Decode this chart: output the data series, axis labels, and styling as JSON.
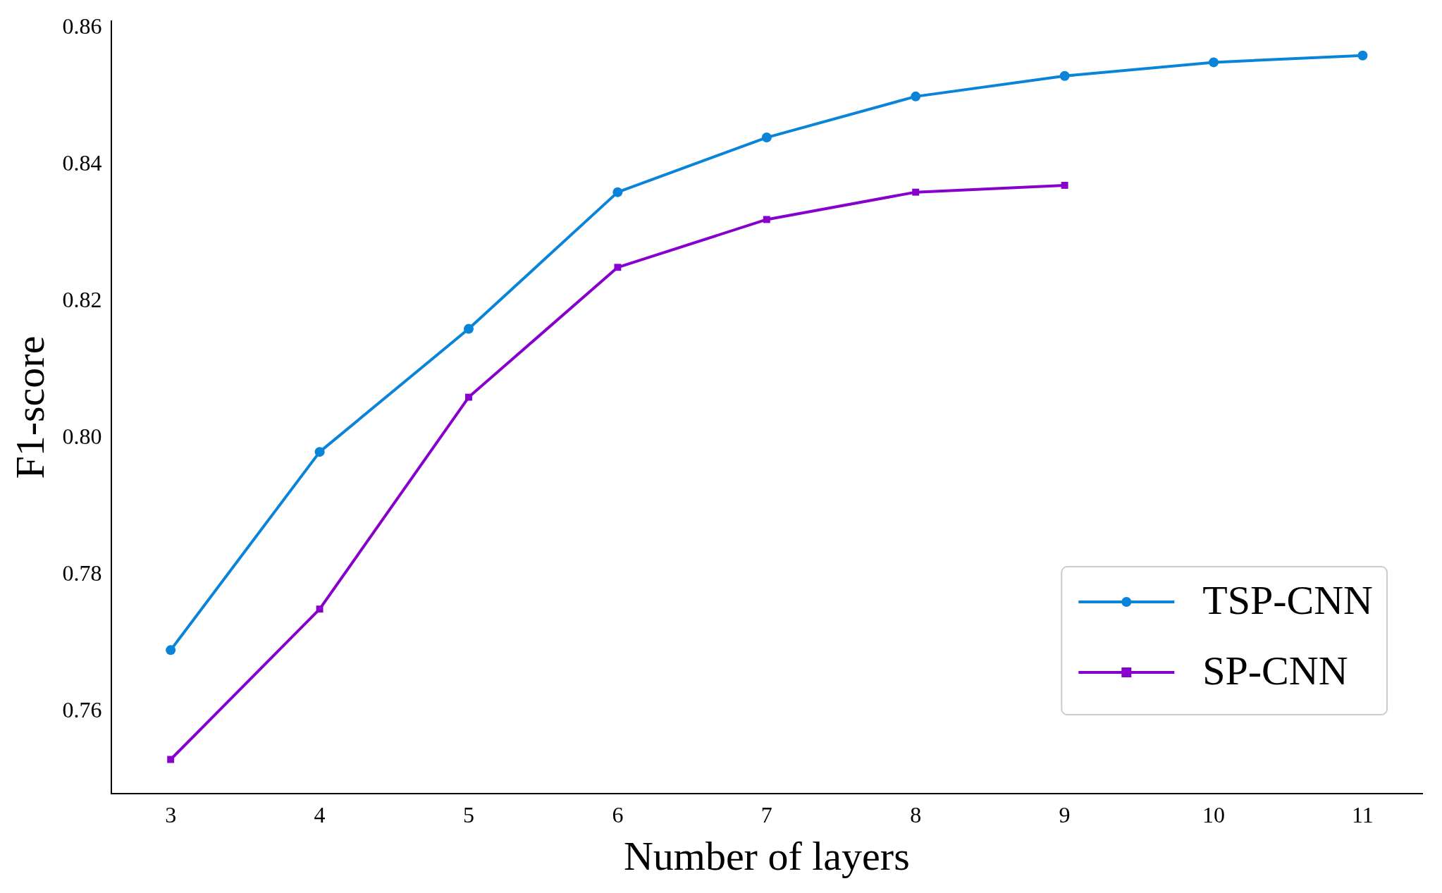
{
  "chart_data": {
    "type": "line",
    "xlabel": "Number of layers",
    "ylabel": "F1-score",
    "x": [
      3,
      4,
      5,
      6,
      7,
      8,
      9,
      10,
      11
    ],
    "series": [
      {
        "name": "TSP-CNN",
        "color": "#0a84d8",
        "marker": "circle",
        "values": [
          0.769,
          0.798,
          0.816,
          0.836,
          0.844,
          0.85,
          0.853,
          0.855,
          0.856
        ]
      },
      {
        "name": "SP-CNN",
        "color": "#8800cc",
        "marker": "square",
        "values": [
          0.753,
          0.775,
          0.806,
          0.825,
          0.832,
          0.836,
          0.837,
          null,
          null
        ]
      }
    ],
    "xlim": [
      2.6,
      11.4
    ],
    "xticks": [
      3,
      4,
      5,
      6,
      7,
      8,
      9,
      10,
      11
    ],
    "ylim": [
      0.748,
      0.861
    ],
    "yticks": [
      {
        "value": 0.76,
        "label": "0.76"
      },
      {
        "value": 0.78,
        "label": "0.78"
      },
      {
        "value": 0.8,
        "label": "0.80"
      },
      {
        "value": 0.82,
        "label": "0.82"
      },
      {
        "value": 0.84,
        "label": "0.84"
      },
      {
        "value": 0.86,
        "label": "0.86"
      }
    ],
    "grid": false,
    "legend": "bottom right",
    "line_style": "solid"
  }
}
